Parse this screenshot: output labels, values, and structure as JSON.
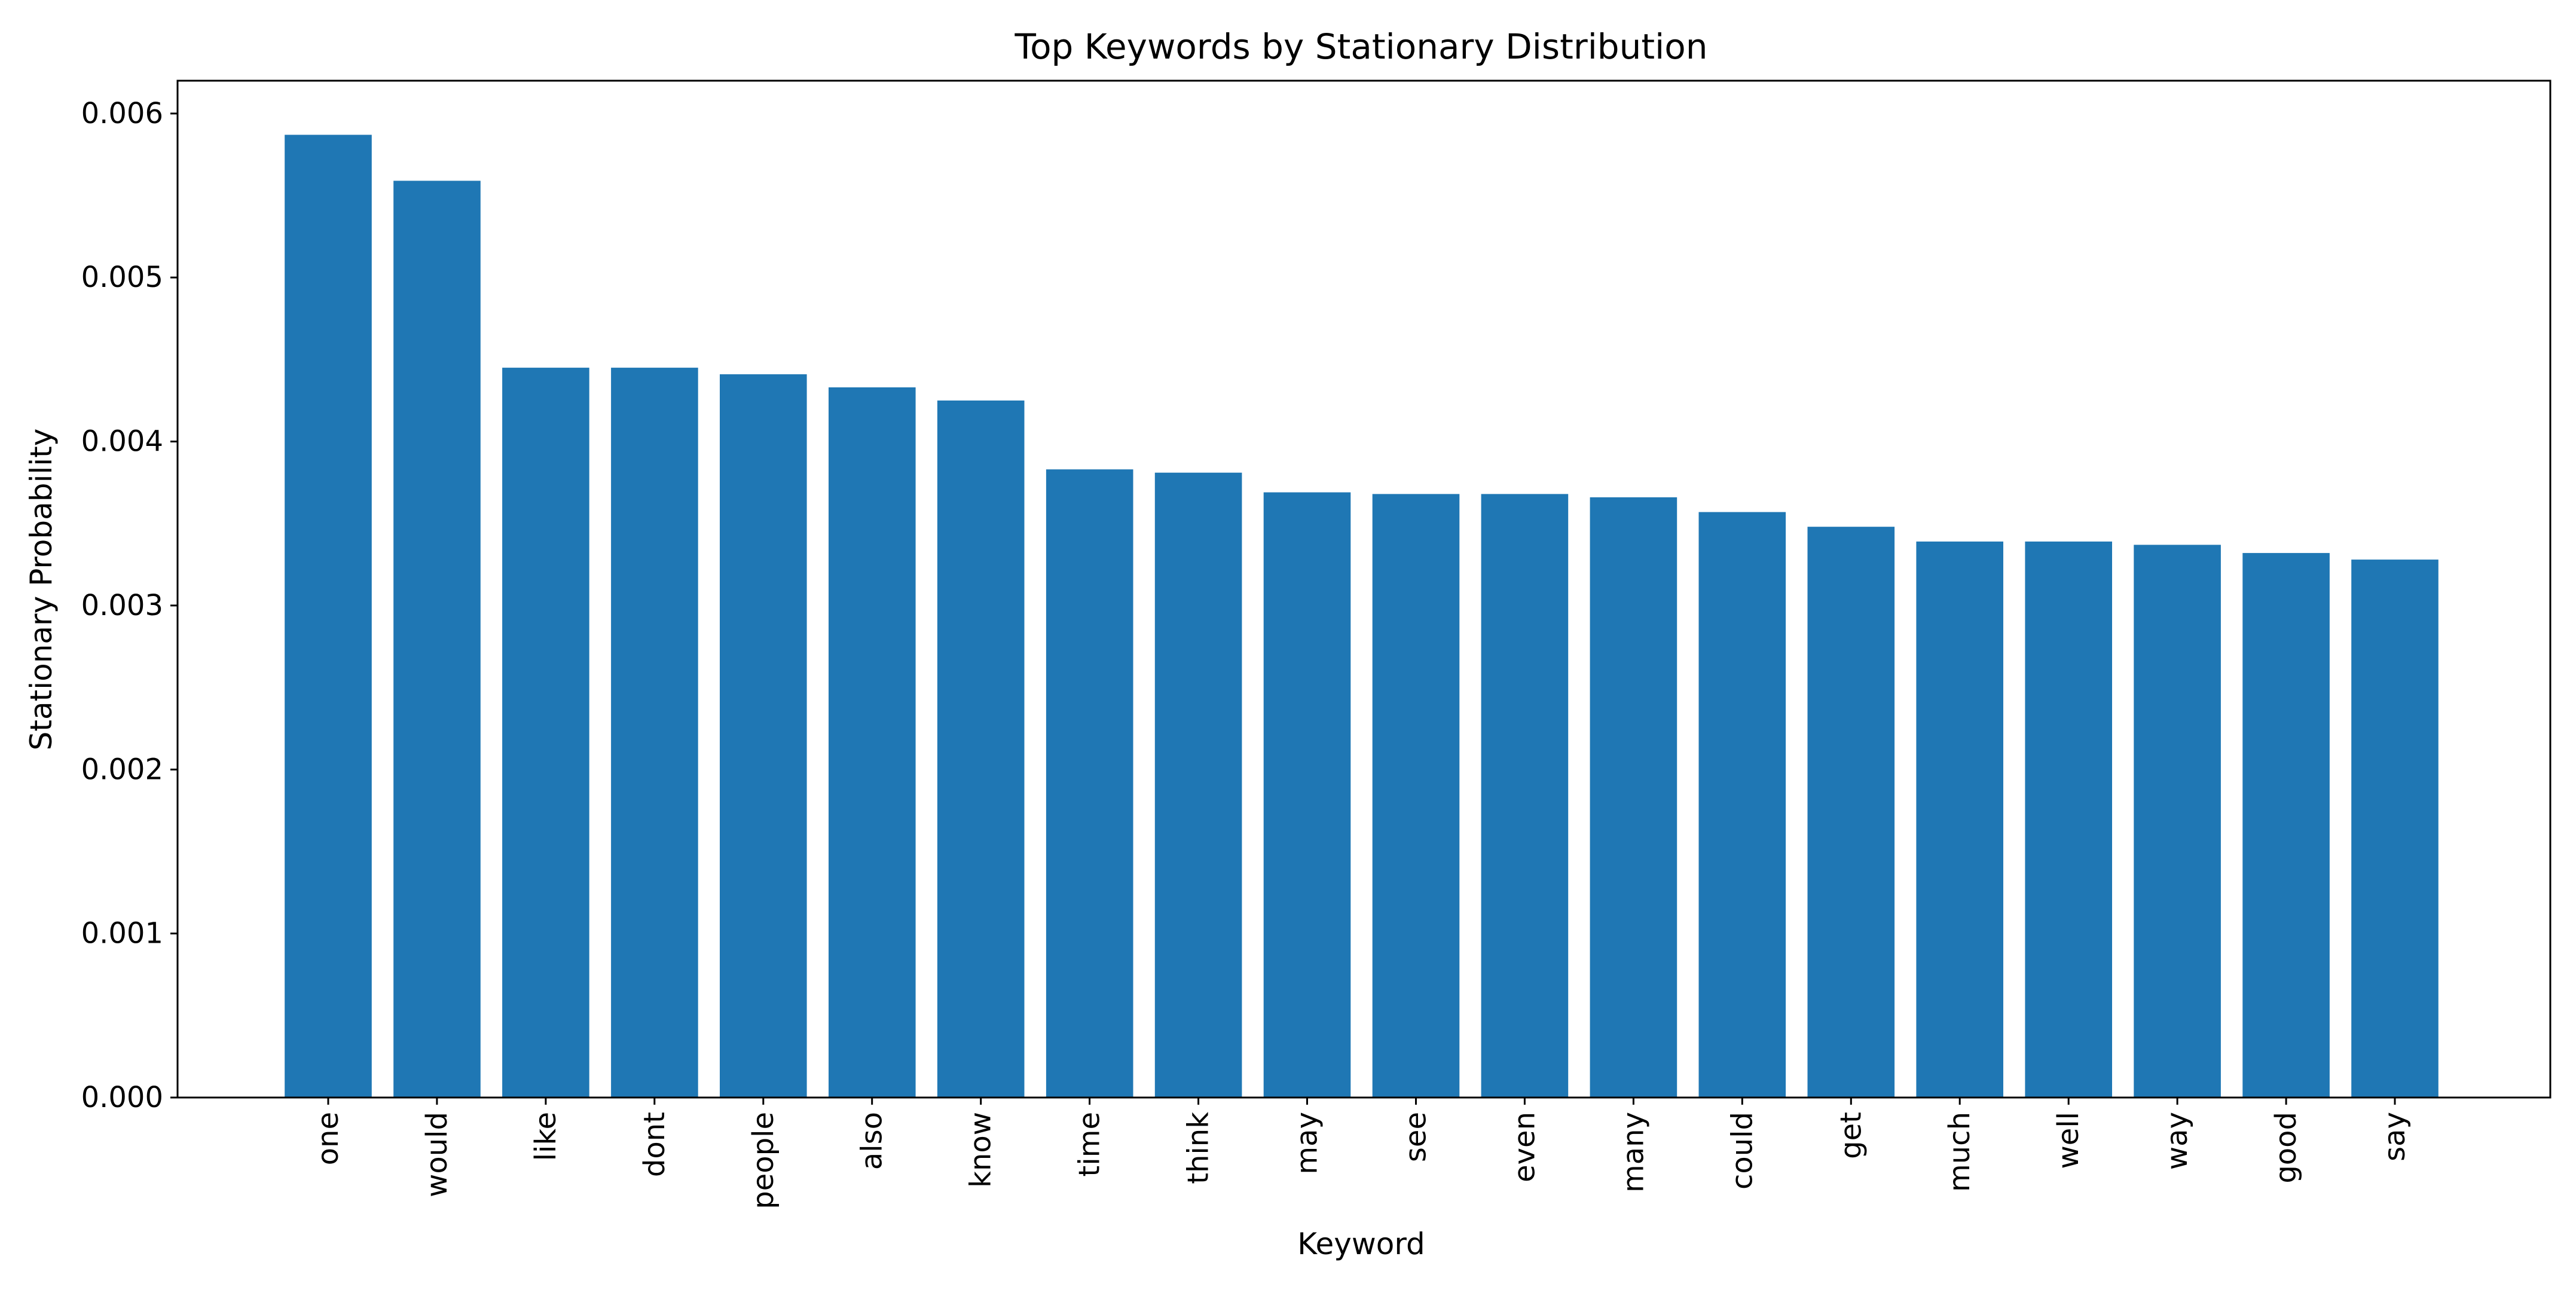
{
  "chart_data": {
    "type": "bar",
    "title": "Top Keywords by Stationary Distribution",
    "xlabel": "Keyword",
    "ylabel": "Stationary Probability",
    "categories": [
      "one",
      "would",
      "like",
      "dont",
      "people",
      "also",
      "know",
      "time",
      "think",
      "may",
      "see",
      "even",
      "many",
      "could",
      "get",
      "much",
      "well",
      "way",
      "good",
      "say"
    ],
    "values": [
      0.00587,
      0.00559,
      0.00445,
      0.00445,
      0.00441,
      0.00433,
      0.00425,
      0.00383,
      0.00381,
      0.00369,
      0.00368,
      0.00368,
      0.00366,
      0.00357,
      0.00348,
      0.00339,
      0.00339,
      0.00337,
      0.00332,
      0.00328
    ],
    "ylim": [
      0,
      0.0062
    ],
    "yticks": [
      "0.000",
      "0.001",
      "0.002",
      "0.003",
      "0.004",
      "0.005",
      "0.006"
    ],
    "bar_color": "#1f77b4",
    "grid": false,
    "legend": "none"
  }
}
